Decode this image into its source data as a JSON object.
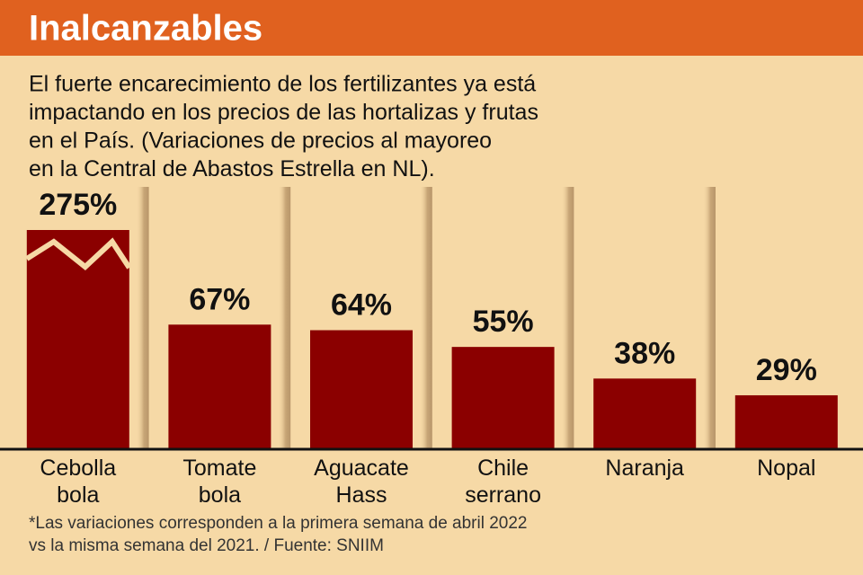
{
  "chart_data": {
    "type": "bar",
    "title": "Inalcanzables",
    "subtitle": [
      "El fuerte encarecimiento de los fertilizantes ya está",
      "impactando en los precios de las hortalizas y frutas",
      "en el País. (Variaciones de precios al mayoreo",
      "en la Central de Abastos Estrella en NL)."
    ],
    "categories": [
      "Cebolla bola",
      "Tomate bola",
      "Aguacate Hass",
      "Chile serrano",
      "Naranja",
      "Nopal"
    ],
    "values": [
      275,
      67,
      64,
      55,
      38,
      29
    ],
    "value_labels": [
      "275%",
      "67%",
      "64%",
      "55%",
      "38%",
      "29%"
    ],
    "color": "#8b0000",
    "footnote": [
      "*Las variaciones corresponden a la primera semana de abril 2022",
      "vs la misma semana del 2021. / Fuente: SNIIM"
    ]
  }
}
